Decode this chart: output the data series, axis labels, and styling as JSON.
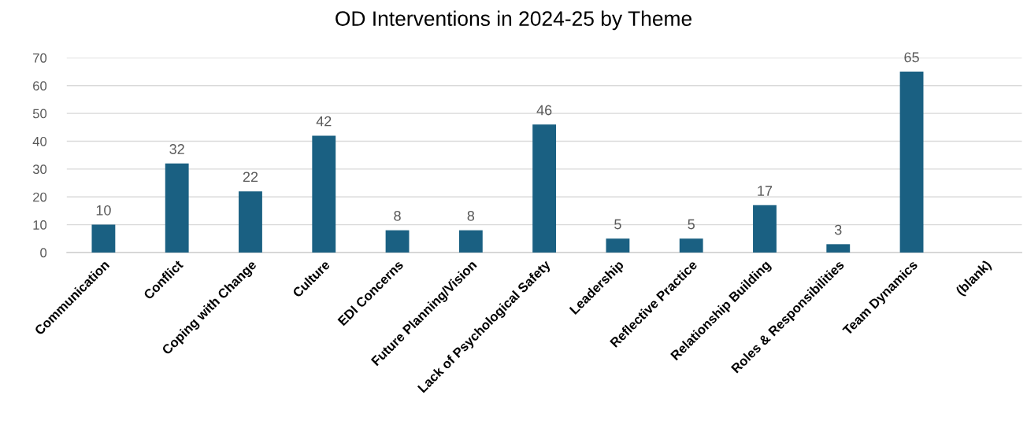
{
  "chart_data": {
    "type": "bar",
    "title": "OD Interventions in 2024-25 by Theme",
    "categories": [
      "Communication",
      "Conflict",
      "Coping with Change",
      "Culture",
      "EDI Concerns",
      "Future Planning/Vision",
      "Lack of Psychological Safety",
      "Leadership",
      "Reflective Practice",
      "Relationship Building",
      "Roles & Responsibilities",
      "Team Dynamics",
      "(blank)"
    ],
    "values": [
      10,
      32,
      22,
      42,
      8,
      8,
      46,
      5,
      5,
      17,
      3,
      65,
      null
    ],
    "color": "#1a6082",
    "ylim": [
      0,
      70
    ],
    "yticks": [
      0,
      10,
      20,
      30,
      40,
      50,
      60,
      70
    ],
    "grid": "y",
    "data_labels": true,
    "legend": false
  }
}
